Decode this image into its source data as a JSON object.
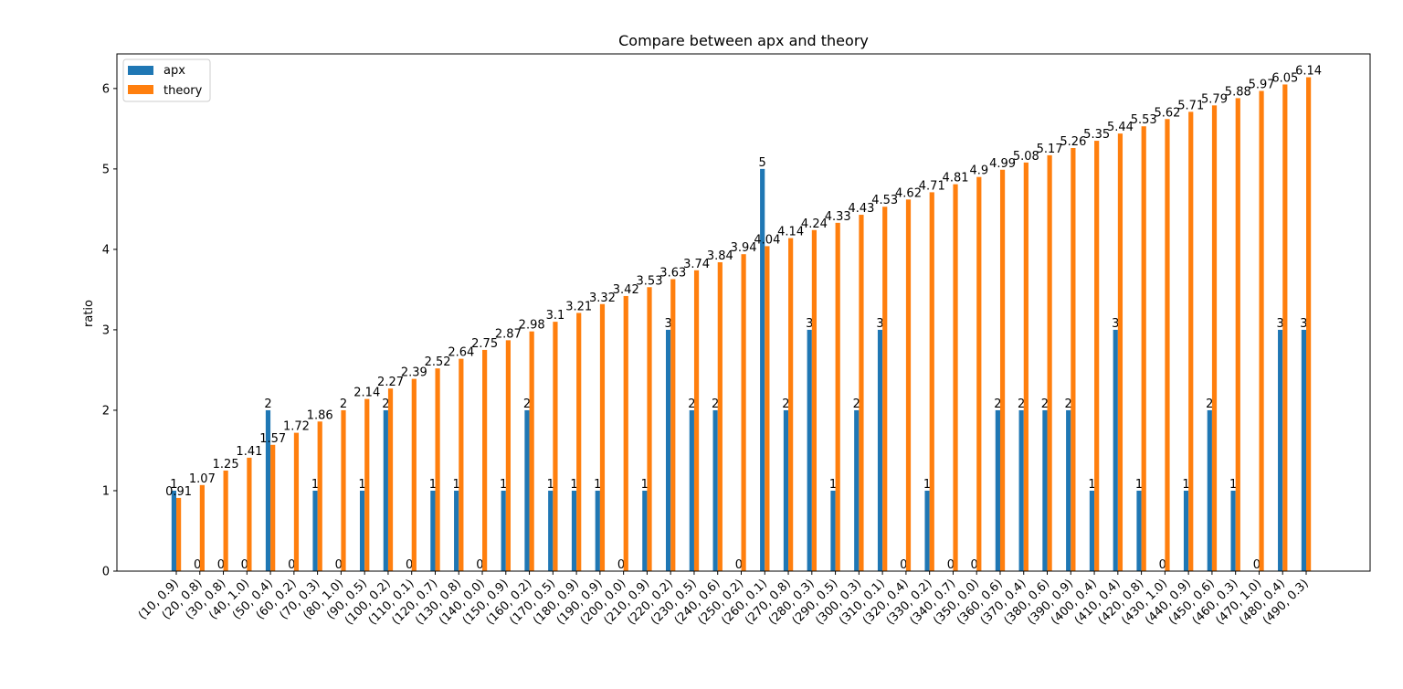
{
  "chart_data": {
    "type": "bar",
    "title": "Compare between apx and theory",
    "xlabel": "",
    "ylabel": "ratio",
    "ylim": [
      0,
      6.43
    ],
    "yticks": [
      0,
      1,
      2,
      3,
      4,
      5,
      6
    ],
    "grid": false,
    "legend_position": "top-left",
    "categories": [
      "(10, 0.9)",
      "(20, 0.8)",
      "(30, 0.8)",
      "(40, 1.0)",
      "(50, 0.4)",
      "(60, 0.2)",
      "(70, 0.3)",
      "(80, 1.0)",
      "(90, 0.5)",
      "(100, 0.2)",
      "(110, 0.1)",
      "(120, 0.7)",
      "(130, 0.8)",
      "(140, 0.0)",
      "(150, 0.9)",
      "(160, 0.2)",
      "(170, 0.5)",
      "(180, 0.9)",
      "(190, 0.9)",
      "(200, 0.0)",
      "(210, 0.9)",
      "(220, 0.2)",
      "(230, 0.5)",
      "(240, 0.6)",
      "(250, 0.2)",
      "(260, 0.1)",
      "(270, 0.8)",
      "(280, 0.3)",
      "(290, 0.5)",
      "(300, 0.3)",
      "(310, 0.1)",
      "(320, 0.4)",
      "(330, 0.2)",
      "(340, 0.7)",
      "(350, 0.0)",
      "(360, 0.6)",
      "(370, 0.4)",
      "(380, 0.6)",
      "(390, 0.9)",
      "(400, 0.4)",
      "(410, 0.4)",
      "(420, 0.8)",
      "(430, 1.0)",
      "(440, 0.9)",
      "(450, 0.6)",
      "(460, 0.3)",
      "(470, 1.0)",
      "(480, 0.4)",
      "(490, 0.3)"
    ],
    "series": [
      {
        "name": "apx",
        "color": "#1f77b4",
        "values": [
          1,
          0,
          0,
          0,
          2,
          0,
          1,
          0,
          1,
          2,
          0,
          1,
          1,
          0,
          1,
          2,
          1,
          1,
          1,
          0,
          1,
          3,
          2,
          2,
          0,
          5,
          2,
          3,
          1,
          2,
          3,
          0,
          1,
          0,
          0,
          2,
          2,
          2,
          2,
          1,
          3,
          1,
          0,
          1,
          2,
          1,
          0,
          3,
          3
        ],
        "labels": [
          "1",
          "0",
          "0",
          "0",
          "2",
          "0",
          "1",
          "0",
          "1",
          "2",
          "0",
          "1",
          "1",
          "0",
          "1",
          "2",
          "1",
          "1",
          "1",
          "0",
          "1",
          "3",
          "2",
          "2",
          "0",
          "5",
          "2",
          "3",
          "1",
          "2",
          "3",
          "0",
          "1",
          "0",
          "0",
          "2",
          "2",
          "2",
          "2",
          "1",
          "3",
          "1",
          "0",
          "1",
          "2",
          "1",
          "0",
          "3",
          "3"
        ]
      },
      {
        "name": "theory",
        "color": "#ff7f0e",
        "values": [
          0.91,
          1.07,
          1.25,
          1.41,
          1.57,
          1.72,
          1.86,
          2,
          2.14,
          2.27,
          2.39,
          2.52,
          2.64,
          2.75,
          2.87,
          2.98,
          3.1,
          3.21,
          3.32,
          3.42,
          3.53,
          3.63,
          3.74,
          3.84,
          3.94,
          4.04,
          4.14,
          4.24,
          4.33,
          4.43,
          4.53,
          4.62,
          4.71,
          4.81,
          4.9,
          4.99,
          5.08,
          5.17,
          5.26,
          5.35,
          5.44,
          5.53,
          5.62,
          5.71,
          5.79,
          5.88,
          5.97,
          6.05,
          6.14
        ],
        "labels": [
          "0.91",
          "1.07",
          "1.25",
          "1.41",
          "1.57",
          "1.72",
          "1.86",
          "2",
          "2.14",
          "2.27",
          "2.39",
          "2.52",
          "2.64",
          "2.75",
          "2.87",
          "2.98",
          "3.1",
          "3.21",
          "3.32",
          "3.42",
          "3.53",
          "3.63",
          "3.74",
          "3.84",
          "3.94",
          "4.04",
          "4.14",
          "4.24",
          "4.33",
          "4.43",
          "4.53",
          "4.62",
          "4.71",
          "4.81",
          "4.9",
          "4.99",
          "5.08",
          "5.17",
          "5.26",
          "5.35",
          "5.44",
          "5.53",
          "5.62",
          "5.71",
          "5.79",
          "5.88",
          "5.97",
          "6.05",
          "6.14"
        ]
      }
    ]
  }
}
